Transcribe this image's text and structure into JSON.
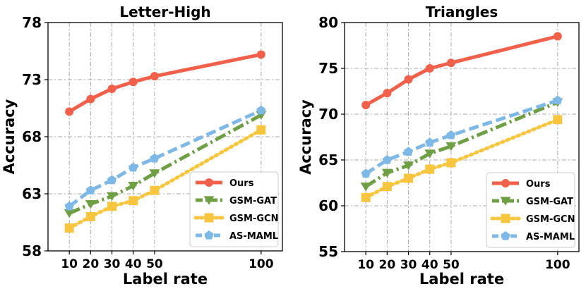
{
  "chart_data": [
    {
      "type": "line",
      "title": "Letter-High",
      "xlabel": "Label rate",
      "ylabel": "Accuracy",
      "x": [
        10,
        20,
        30,
        40,
        50,
        100
      ],
      "xticks": [
        "10",
        "20",
        "30",
        "40",
        "50",
        "100"
      ],
      "ylim": [
        58,
        78
      ],
      "yticks": [
        "58",
        "63",
        "68",
        "73",
        "78"
      ],
      "ytick_values": [
        58,
        63,
        68,
        73,
        78
      ],
      "grid": true,
      "legend_position": "bottom-right",
      "series": [
        {
          "name": "Ours",
          "values": [
            70.2,
            71.3,
            72.2,
            72.8,
            73.3,
            75.2
          ],
          "color": "#f0604a",
          "marker": "circle",
          "dash": "solid"
        },
        {
          "name": "GSM-GAT",
          "values": [
            61.3,
            62.1,
            62.8,
            63.7,
            64.8,
            69.9
          ],
          "color": "#6f9f45",
          "marker": "triangle-down",
          "dash": "dashdot"
        },
        {
          "name": "GSM-GCN",
          "values": [
            60.0,
            61.0,
            61.9,
            62.4,
            63.3,
            68.6
          ],
          "color": "#f8c63e",
          "marker": "square",
          "dash": "dotted"
        },
        {
          "name": "AS-MAML",
          "values": [
            61.9,
            63.3,
            64.2,
            65.3,
            66.1,
            70.3
          ],
          "color": "#7db8e6",
          "marker": "pentagon",
          "dash": "dashed"
        }
      ]
    },
    {
      "type": "line",
      "title": "Triangles",
      "xlabel": "Label rate",
      "ylabel": "Accuracy",
      "x": [
        10,
        20,
        30,
        40,
        50,
        100
      ],
      "xticks": [
        "10",
        "20",
        "30",
        "40",
        "50",
        "100"
      ],
      "ylim": [
        55,
        80
      ],
      "yticks": [
        "55",
        "60",
        "65",
        "70",
        "75",
        "80"
      ],
      "ytick_values": [
        55,
        60,
        65,
        70,
        75,
        80
      ],
      "grid": true,
      "legend_position": "bottom-right",
      "series": [
        {
          "name": "Ours",
          "values": [
            71.0,
            72.3,
            73.8,
            75.0,
            75.6,
            78.5
          ],
          "color": "#f0604a",
          "marker": "circle",
          "dash": "solid"
        },
        {
          "name": "GSM-GAT",
          "values": [
            62.1,
            63.6,
            64.4,
            65.7,
            66.5,
            71.3
          ],
          "color": "#6f9f45",
          "marker": "triangle-down",
          "dash": "dashdot"
        },
        {
          "name": "GSM-GCN",
          "values": [
            60.9,
            62.1,
            63.0,
            64.0,
            64.7,
            69.4
          ],
          "color": "#f8c63e",
          "marker": "square",
          "dash": "dotted"
        },
        {
          "name": "AS-MAML",
          "values": [
            63.5,
            65.0,
            65.9,
            66.9,
            67.7,
            71.5
          ],
          "color": "#7db8e6",
          "marker": "pentagon",
          "dash": "dashed"
        }
      ]
    }
  ]
}
